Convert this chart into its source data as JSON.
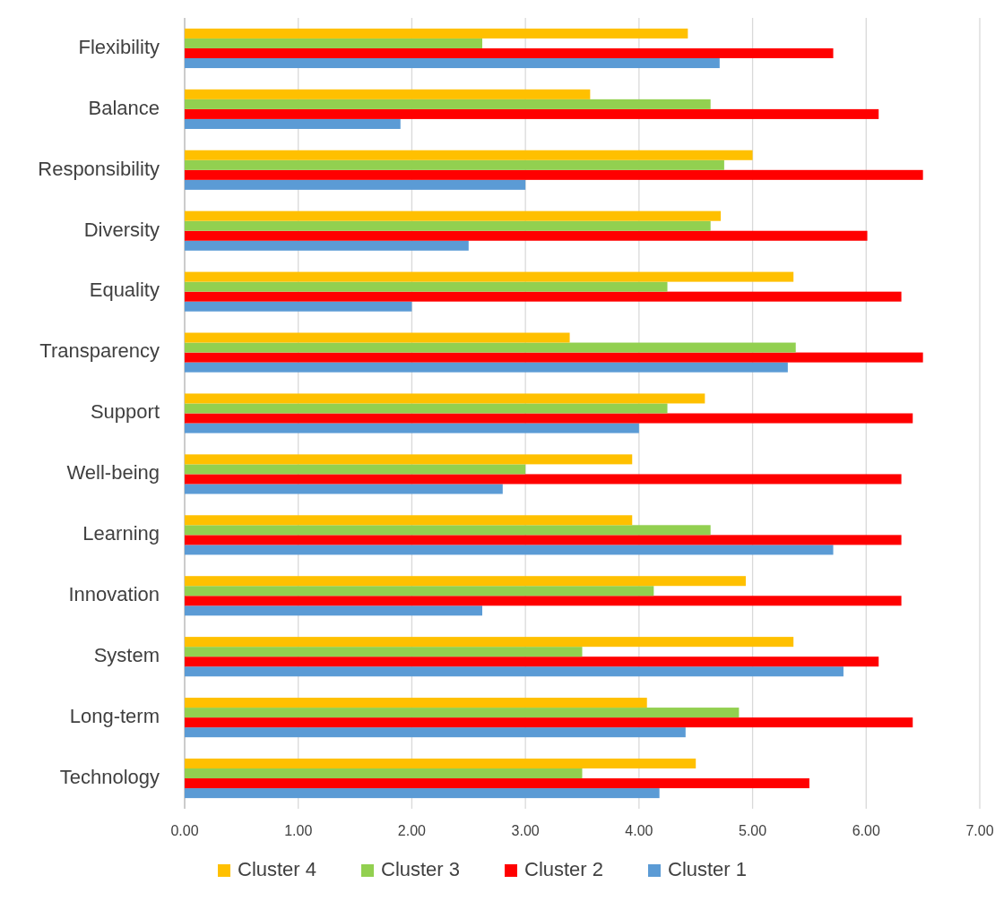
{
  "chart_data": {
    "type": "bar",
    "orientation": "horizontal",
    "categories": [
      "Flexibility",
      "Balance",
      "Responsibility",
      "Diversity",
      "Equality",
      "Transparency",
      "Support",
      "Well-being",
      "Learning",
      "Innovation",
      "System",
      "Long-term",
      "Technology"
    ],
    "series": [
      {
        "name": "Cluster 1",
        "color": "#5b9bd5",
        "values": [
          4.71,
          1.9,
          3.0,
          2.5,
          2.0,
          5.31,
          4.0,
          2.8,
          5.71,
          2.62,
          5.8,
          4.41,
          4.18
        ]
      },
      {
        "name": "Cluster 2",
        "color": "#ff0000",
        "values": [
          5.71,
          6.11,
          6.5,
          6.01,
          6.31,
          6.5,
          6.41,
          6.31,
          6.31,
          6.31,
          6.11,
          6.41,
          5.5
        ]
      },
      {
        "name": "Cluster 3",
        "color": "#92d050",
        "values": [
          2.62,
          4.63,
          4.75,
          4.63,
          4.25,
          5.38,
          4.25,
          3.0,
          4.63,
          4.13,
          3.5,
          4.88,
          3.5
        ]
      },
      {
        "name": "Cluster 4",
        "color": "#ffc000",
        "values": [
          4.43,
          3.57,
          5.0,
          4.72,
          5.36,
          3.39,
          4.58,
          3.94,
          3.94,
          4.94,
          5.36,
          4.07,
          4.5
        ]
      }
    ],
    "xlim": [
      0,
      7
    ],
    "xticks": [
      {
        "value": 0,
        "label": "0.00"
      },
      {
        "value": 1,
        "label": "1.00"
      },
      {
        "value": 2,
        "label": "2.00"
      },
      {
        "value": 3,
        "label": "3.00"
      },
      {
        "value": 4,
        "label": "4.00"
      },
      {
        "value": 5,
        "label": "5.00"
      },
      {
        "value": 6,
        "label": "6.00"
      },
      {
        "value": 7,
        "label": "7.00"
      }
    ],
    "grid": "x",
    "legend": "bottom"
  }
}
